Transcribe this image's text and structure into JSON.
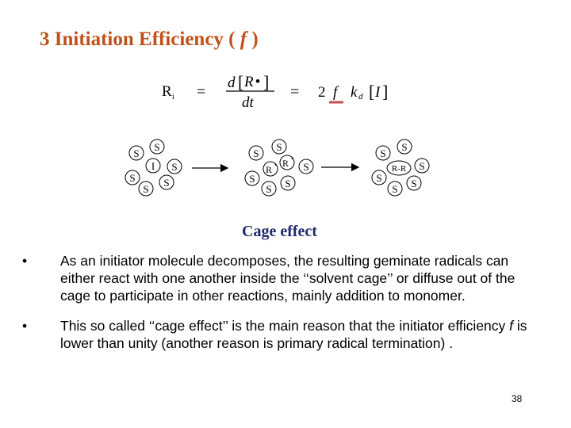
{
  "slide": {
    "title_prefix": "3  Initiation Efficiency ( ",
    "title_symbol": "f",
    "title_suffix": " )",
    "equation": {
      "lhs": "R",
      "lhs_subscript": "i",
      "equals": "=",
      "numerator_d": "d",
      "numerator_species": "R",
      "numerator_dot": "•",
      "denominator": "dt",
      "factor": "2",
      "efficiency": "f",
      "rate_constant": "k",
      "rate_constant_subscript": "d",
      "initiator": "I"
    },
    "diagram": {
      "solvent_label": "S",
      "initiator_label": "I",
      "radical_label": "R",
      "radical_dot": "•",
      "product_label": "R-R"
    },
    "caption": "Cage effect",
    "bullets": [
      {
        "marker": "•",
        "text": "As an initiator molecule decomposes, the resulting geminate radicals can either react with one another inside the ‘‘solvent cage’’ or diffuse out of the cage to participate in other reactions, mainly addition to monomer."
      },
      {
        "marker": "•",
        "text_before": "This so called ‘‘cage effect’’ is the main reason that the initiator efficiency ",
        "symbol": "f",
        "text_after": " is lower than unity (another reason is primary radical termination) ."
      }
    ],
    "page_number": "38",
    "colors": {
      "title": "#c0501a",
      "caption": "#1f2a6e",
      "underline": "#c0504d"
    }
  }
}
